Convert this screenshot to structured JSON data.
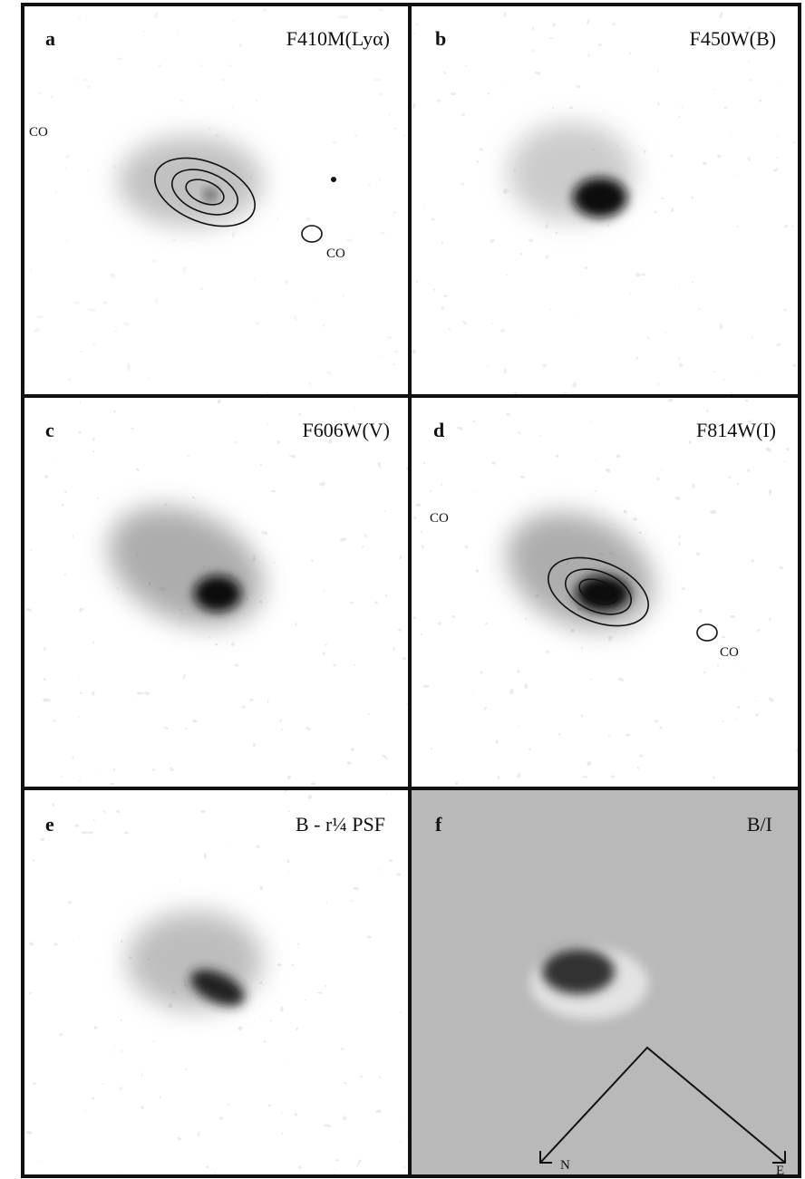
{
  "panels": [
    {
      "label": "a",
      "filter": "F410M(Lyα)",
      "annotations": [
        "CO",
        "CO"
      ]
    },
    {
      "label": "b",
      "filter": "F450W(B)"
    },
    {
      "label": "c",
      "filter": "F606W(V)"
    },
    {
      "label": "d",
      "filter": "F814W(I)",
      "annotations": [
        "CO",
        "CO"
      ]
    },
    {
      "label": "e",
      "filter": "B - r¼ PSF"
    },
    {
      "label": "f",
      "filter": "B/I"
    }
  ],
  "compass": {
    "north": "N",
    "east": "E"
  }
}
